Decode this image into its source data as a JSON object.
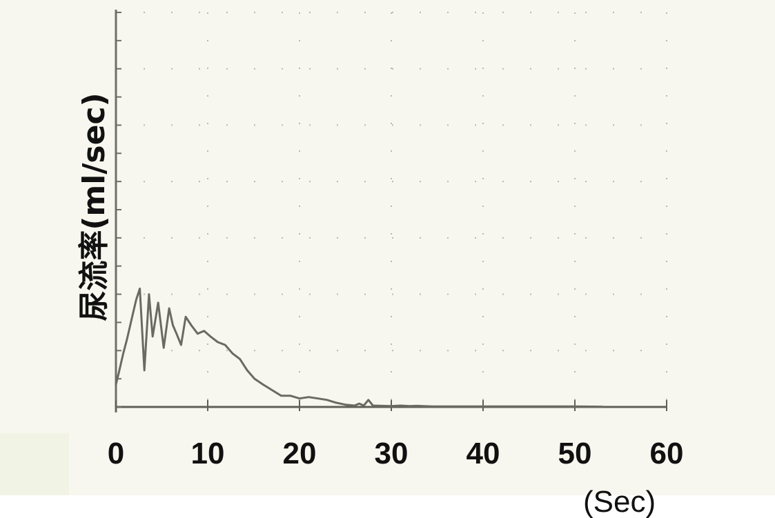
{
  "chart_data": {
    "type": "line",
    "ylabel": "尿流率(ml/sec)",
    "xlabel": "(Sec)",
    "xlim": [
      0,
      60
    ],
    "x_ticks": [
      "0",
      "10",
      "20",
      "30",
      "40",
      "50",
      "60"
    ],
    "ylim": [
      0,
      14
    ],
    "grid": true,
    "series": [
      {
        "color": "#6a6a64",
        "x": [
          0,
          0.3,
          0.8,
          1.2,
          1.7,
          2.2,
          2.6,
          3.1,
          3.6,
          4.0,
          4.6,
          5.2,
          5.8,
          6.2,
          6.6,
          7.1,
          7.6,
          8.2,
          8.9,
          9.6,
          10.3,
          11.1,
          11.9,
          12.7,
          13.5,
          14.3,
          15.1,
          16.0,
          17.0,
          18.0,
          19.0,
          20.0,
          21.0,
          22.0,
          23.0,
          24.0,
          25.0,
          26.0,
          26.5,
          27.0,
          27.5,
          28.0,
          29.0,
          30.0,
          31.0,
          32.0,
          32.8,
          33.5,
          34.5,
          36.0,
          40.0,
          45.0,
          50.0,
          53.0
        ],
        "y": [
          0.8,
          1.2,
          1.9,
          2.4,
          3.1,
          3.8,
          4.2,
          1.3,
          4.0,
          2.5,
          3.7,
          2.1,
          3.5,
          2.9,
          2.6,
          2.2,
          3.2,
          2.9,
          2.6,
          2.7,
          2.5,
          2.3,
          2.2,
          1.9,
          1.7,
          1.3,
          1.0,
          0.8,
          0.6,
          0.4,
          0.4,
          0.3,
          0.35,
          0.3,
          0.25,
          0.15,
          0.08,
          0.05,
          0.12,
          0.05,
          0.25,
          0.05,
          0.04,
          0.03,
          0.05,
          0.03,
          0.04,
          0.03,
          0.02,
          0.02,
          0.02,
          0.02,
          0.02,
          0.01
        ]
      }
    ]
  }
}
